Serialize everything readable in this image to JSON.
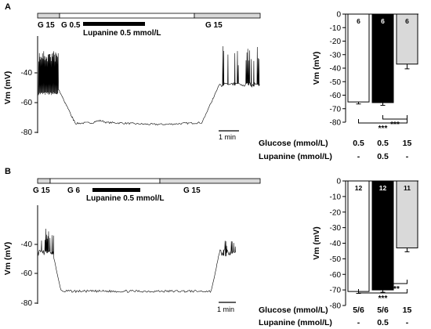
{
  "panels": [
    {
      "id": "A",
      "trace": {
        "ylabel": "Vm (mV)",
        "yticks": [
          "-40",
          "-60",
          "-80"
        ],
        "conditions": [
          "G 15",
          "G 0.5",
          "G 15"
        ],
        "drug_label": "Lupanine 0.5 mmol/L",
        "scalebar": "1 min"
      },
      "chart_data": {
        "type": "bar",
        "ylabel": "Vm (mV)",
        "ylim": [
          -80,
          0
        ],
        "yticks": [
          "0",
          "-10",
          "-20",
          "-30",
          "-40",
          "-50",
          "-60",
          "-70",
          "-80"
        ],
        "categories": [
          "G 0.5",
          "G 0.5 + Lupanine 0.5",
          "G 15"
        ],
        "values": [
          -65,
          -65.5,
          -37
        ],
        "errors": [
          1.5,
          2,
          3.5
        ],
        "n_labels": [
          "6",
          "6",
          "6"
        ],
        "bar_colors": [
          "#ffffff",
          "#000000",
          "#d9d9d9"
        ],
        "significance": [
          "***",
          "***"
        ],
        "glucose_row_label": "Glucose   (mmol/L)",
        "glucose_values": [
          "0.5",
          "0.5",
          "15"
        ],
        "lupanine_row_label": "Lupanine (mmol/L)",
        "lupanine_values": [
          "-",
          "0.5",
          "-"
        ]
      }
    },
    {
      "id": "B",
      "trace": {
        "ylabel": "Vm (mV)",
        "yticks": [
          "-40",
          "-60",
          "-80"
        ],
        "conditions": [
          "G 15",
          "G 6",
          "G 15"
        ],
        "drug_label": "Lupanine 0.5 mmol/L",
        "scalebar": "1 min"
      },
      "chart_data": {
        "type": "bar",
        "ylabel": "Vm (mV)",
        "ylim": [
          -80,
          0
        ],
        "yticks": [
          "0",
          "-10",
          "-20",
          "-30",
          "-40",
          "-50",
          "-60",
          "-70",
          "-80"
        ],
        "categories": [
          "G 5/6",
          "G 5/6 + Lupanine 0.5",
          "G 15"
        ],
        "values": [
          -71,
          -70,
          -43
        ],
        "errors": [
          1.2,
          1.5,
          2.5
        ],
        "n_labels": [
          "12",
          "12",
          "11"
        ],
        "bar_colors": [
          "#ffffff",
          "#000000",
          "#d9d9d9"
        ],
        "significance": [
          "***",
          "***"
        ],
        "glucose_row_label": "Glucose   (mmol/L)",
        "glucose_values": [
          "5/6",
          "5/6",
          "15"
        ],
        "lupanine_row_label": "Lupanine (mmol/L)",
        "lupanine_values": [
          "-",
          "0.5",
          "-"
        ]
      }
    }
  ]
}
